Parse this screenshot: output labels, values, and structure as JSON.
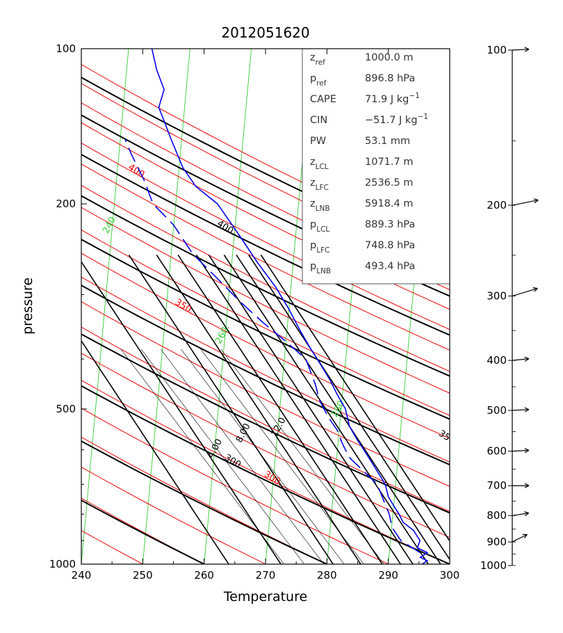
{
  "chart_data": {
    "type": "line",
    "title": "2012051620",
    "xlabel": "Temperature",
    "ylabel": "pressure",
    "xlim": [
      240,
      300
    ],
    "ylim": [
      1000,
      100
    ],
    "y_scale": "log",
    "x_ticks": [
      "240",
      "250",
      "260",
      "270",
      "280",
      "290",
      "300"
    ],
    "y_ticks": [
      "100",
      "200",
      "500",
      "1000"
    ],
    "series": [
      {
        "role": "temperature",
        "color": "#0000ee",
        "style": "solid",
        "points": [
          [
            1000,
            295.5
          ],
          [
            985,
            296.3
          ],
          [
            970,
            295.1
          ],
          [
            950,
            296.2
          ],
          [
            930,
            294.5
          ],
          [
            900,
            294.8
          ],
          [
            860,
            293.6
          ],
          [
            830,
            291.8
          ],
          [
            800,
            291.0
          ],
          [
            770,
            290.0
          ],
          [
            740,
            289.0
          ],
          [
            700,
            288.3
          ],
          [
            660,
            286.8
          ],
          [
            630,
            285.6
          ],
          [
            600,
            284.3
          ],
          [
            570,
            282.9
          ],
          [
            540,
            281.6
          ],
          [
            500,
            280.7
          ],
          [
            470,
            279.2
          ],
          [
            440,
            277.8
          ],
          [
            410,
            276.0
          ],
          [
            380,
            274.0
          ],
          [
            350,
            272.0
          ],
          [
            320,
            270.0
          ],
          [
            290,
            267.5
          ],
          [
            260,
            264.2
          ],
          [
            230,
            260.8
          ],
          [
            200,
            256.8
          ],
          [
            185,
            253.0
          ],
          [
            170,
            250.6
          ],
          [
            150,
            248.3
          ],
          [
            130,
            245.8
          ],
          [
            120,
            246.4
          ],
          [
            110,
            244.9
          ],
          [
            100,
            243.8
          ]
        ]
      },
      {
        "role": "dewpoint",
        "color": "#0000ee",
        "style": "dashed",
        "points": [
          [
            950,
            295.0
          ],
          [
            900,
            291.7
          ],
          [
            850,
            290.1
          ],
          [
            800,
            289.4
          ],
          [
            700,
            287.0
          ],
          [
            620,
            282.0
          ],
          [
            580,
            280.6
          ],
          [
            550,
            279.7
          ],
          [
            520,
            278.1
          ],
          [
            480,
            276.3
          ],
          [
            450,
            275.5
          ],
          [
            400,
            273.5
          ],
          [
            370,
            270.0
          ],
          [
            340,
            266.0
          ],
          [
            310,
            262.0
          ],
          [
            280,
            258.0
          ],
          [
            250,
            253.5
          ],
          [
            220,
            250.0
          ],
          [
            200,
            246.3
          ],
          [
            180,
            244.5
          ],
          [
            160,
            242.0
          ],
          [
            150,
            240.8
          ]
        ]
      }
    ],
    "isolines": [
      {
        "kind": "isotherm",
        "color": "#33cc33",
        "labels": [
          "200.",
          "220.",
          "240.",
          "260.",
          "280."
        ]
      },
      {
        "kind": "dry_adiabat",
        "color": "#ee0000",
        "labels": [
          "300.",
          "350.",
          "400."
        ]
      },
      {
        "kind": "moist_adiabat",
        "color": "#000000",
        "labels": [
          "300.",
          "350.",
          "400."
        ]
      },
      {
        "kind": "mixing_ratio",
        "color": "#000000",
        "labels": [
          "4.00",
          "8.00",
          "12.0"
        ]
      }
    ],
    "info_box": [
      {
        "label": "z",
        "sub": "ref",
        "value": "1000.0 m"
      },
      {
        "label": "p",
        "sub": "ref",
        "value": "896.8 hPa"
      },
      {
        "label": "CAPE",
        "sub": "",
        "value": "71.9 J kg",
        "sup": "−1"
      },
      {
        "label": "CIN",
        "sub": "",
        "value": "−51.7 J kg",
        "sup": "−1"
      },
      {
        "label": "PW",
        "sub": "",
        "value": "53.1 mm"
      },
      {
        "label": "z",
        "sub": "LCL",
        "value": "1071.7 m"
      },
      {
        "label": "z",
        "sub": "LFC",
        "value": "2536.5 m"
      },
      {
        "label": "z",
        "sub": "LNB",
        "value": "5918.4 m"
      },
      {
        "label": "p",
        "sub": "LCL",
        "value": "889.3 hPa"
      },
      {
        "label": "p",
        "sub": "LFC",
        "value": "748.8 hPa"
      },
      {
        "label": "p",
        "sub": "LNB",
        "value": "493.4 hPa"
      }
    ],
    "wind_profile": {
      "levels": [
        "100",
        "200",
        "300",
        "400",
        "500",
        "600",
        "700",
        "800",
        "900",
        "1000"
      ],
      "barbs": [
        {
          "p": 100,
          "u": 1.0,
          "v": 0.05,
          "feather": false
        },
        {
          "p": 200,
          "u": 1.0,
          "v": 0.2,
          "feather": true
        },
        {
          "p": 300,
          "u": 1.0,
          "v": 0.3,
          "feather": true
        },
        {
          "p": 400,
          "u": 1.0,
          "v": 0.1,
          "feather": false
        },
        {
          "p": 500,
          "u": 1.0,
          "v": 0.05,
          "feather": false
        },
        {
          "p": 600,
          "u": 1.0,
          "v": 0.05,
          "feather": false
        },
        {
          "p": 700,
          "u": 1.0,
          "v": 0.0,
          "feather": false
        },
        {
          "p": 800,
          "u": 1.0,
          "v": 0.15,
          "feather": false
        },
        {
          "p": 900,
          "u": 0.6,
          "v": 0.3,
          "feather": false
        }
      ]
    }
  }
}
